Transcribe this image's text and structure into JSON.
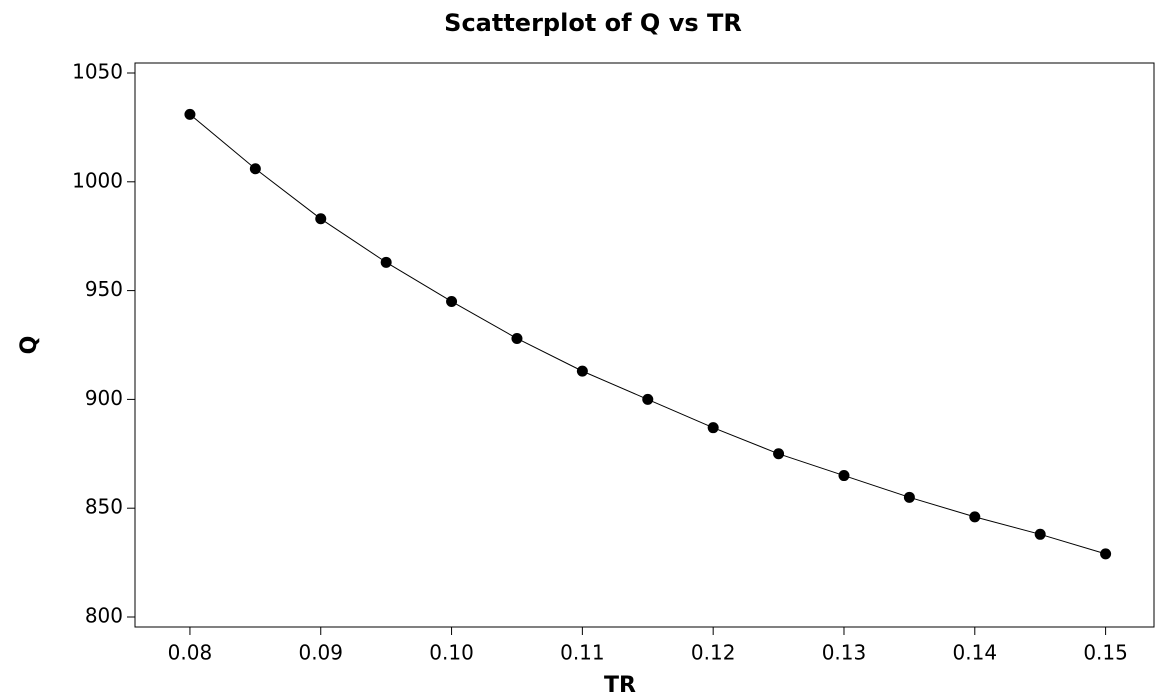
{
  "chart_data": {
    "type": "scatter",
    "title": "Scatterplot of Q vs TR",
    "x_label": "TR",
    "y_label": "Q",
    "x": [
      0.08,
      0.085,
      0.09,
      0.095,
      0.1,
      0.105,
      0.11,
      0.115,
      0.12,
      0.125,
      0.13,
      0.135,
      0.14,
      0.145,
      0.15
    ],
    "values": [
      1031,
      1006,
      983,
      963,
      945,
      928,
      913,
      900,
      887,
      875,
      865,
      855,
      846,
      838,
      829
    ],
    "color": "#000000",
    "line": true,
    "xlim": [
      0.0758,
      0.1537
    ],
    "ylim": [
      795.4,
      1054.6
    ],
    "xticks": [
      0.08,
      0.09,
      {
        "value": 0.1,
        "label": "0.10"
      },
      0.11,
      0.12,
      0.13,
      0.14,
      0.15
    ],
    "yticks": [
      800,
      850,
      900,
      950,
      1000,
      1050
    ]
  }
}
